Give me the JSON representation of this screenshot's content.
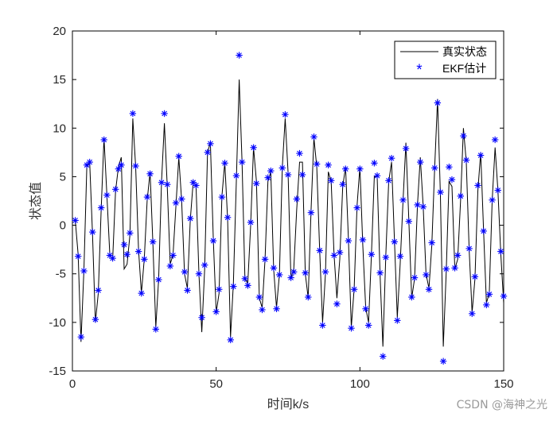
{
  "chart_data": {
    "type": "line",
    "xlabel": "时间k/s",
    "ylabel": "状态值",
    "xlim": [
      0,
      150
    ],
    "ylim": [
      -15,
      20
    ],
    "xticks": [
      0,
      50,
      100,
      150
    ],
    "yticks": [
      -15,
      -10,
      -5,
      0,
      5,
      10,
      15,
      20
    ],
    "grid": false,
    "legend_position": "top-right",
    "series": [
      {
        "name": "真实状态",
        "style": "line",
        "color": "#000000",
        "x": [
          1,
          2,
          3,
          4,
          5,
          6,
          7,
          8,
          9,
          10,
          11,
          12,
          13,
          14,
          15,
          16,
          17,
          18,
          19,
          20,
          21,
          22,
          23,
          24,
          25,
          26,
          27,
          28,
          29,
          30,
          31,
          32,
          33,
          34,
          35,
          36,
          37,
          38,
          39,
          40,
          41,
          42,
          43,
          44,
          45,
          46,
          47,
          48,
          49,
          50,
          51,
          52,
          53,
          54,
          55,
          56,
          57,
          58,
          59,
          60,
          61,
          62,
          63,
          64,
          65,
          66,
          67,
          68,
          69,
          70,
          71,
          72,
          73,
          74,
          75,
          76,
          77,
          78,
          79,
          80,
          81,
          82,
          83,
          84,
          85,
          86,
          87,
          88,
          89,
          90,
          91,
          92,
          93,
          94,
          95,
          96,
          97,
          98,
          99,
          100,
          101,
          102,
          103,
          104,
          105,
          106,
          107,
          108,
          109,
          110,
          111,
          112,
          113,
          114,
          115,
          116,
          117,
          118,
          119,
          120,
          121,
          122,
          123,
          124,
          125,
          126,
          127,
          128,
          129,
          130,
          131,
          132,
          133,
          134,
          135,
          136,
          137,
          138,
          139,
          140,
          141,
          142,
          143,
          144,
          145,
          146,
          147,
          148,
          149,
          150
        ],
        "y": [
          0.5,
          -3,
          -12,
          -4.5,
          6,
          6.5,
          -1,
          -10,
          -7,
          1.5,
          9,
          3,
          -3,
          -3.5,
          3.5,
          6,
          7,
          -4.5,
          -4,
          -1,
          11,
          6,
          -2.5,
          -7,
          -3.5,
          2.5,
          5.5,
          -2,
          -10.5,
          -5.5,
          4.5,
          10.5,
          4,
          -4,
          -3,
          2,
          7,
          2.5,
          -5,
          -6.5,
          0.5,
          4.5,
          4,
          -5,
          -11,
          -4.5,
          7.5,
          8.5,
          -1.5,
          -9,
          -7,
          3,
          6.5,
          0.5,
          -11.5,
          -6,
          4.5,
          15,
          6.5,
          -5.5,
          -6,
          0,
          8,
          4.5,
          -7.5,
          -8.5,
          -3.5,
          4.5,
          5.5,
          -4.5,
          -8.5,
          -5,
          6,
          11,
          5.5,
          -5.5,
          -4.5,
          1.5,
          6.5,
          6.5,
          -5,
          -7.5,
          1.5,
          9,
          6,
          -2.5,
          -10,
          -5,
          5.5,
          4.5,
          -3,
          -7.5,
          -3.5,
          4,
          6,
          -1.5,
          -10.5,
          -6.5,
          2,
          6,
          -2,
          -8.5,
          -10,
          -3,
          5,
          5,
          -5,
          -12.5,
          -3,
          4.5,
          6.5,
          -1.5,
          -9.5,
          -4,
          2.5,
          8.5,
          0.5,
          -7.5,
          -5.5,
          2,
          7,
          2,
          -5,
          -6.5,
          -2,
          6,
          13,
          3,
          -12.5,
          -5,
          4.5,
          4,
          -4.5,
          -3.5,
          2.5,
          10,
          6.5,
          -2.5,
          -9,
          -5.5,
          3.5,
          7.5,
          -0.5,
          -8,
          -7,
          2.5,
          8,
          3.5,
          -3,
          -8
        ]
      },
      {
        "name": "EKF估计",
        "style": "marker",
        "marker": "*",
        "color": "#0000ff",
        "x": [
          1,
          2,
          3,
          4,
          5,
          6,
          7,
          8,
          9,
          10,
          11,
          12,
          13,
          14,
          15,
          16,
          17,
          18,
          19,
          20,
          21,
          22,
          23,
          24,
          25,
          26,
          27,
          28,
          29,
          30,
          31,
          32,
          33,
          34,
          35,
          36,
          37,
          38,
          39,
          40,
          41,
          42,
          43,
          44,
          45,
          46,
          47,
          48,
          49,
          50,
          51,
          52,
          53,
          54,
          55,
          56,
          57,
          58,
          59,
          60,
          61,
          62,
          63,
          64,
          65,
          66,
          67,
          68,
          69,
          70,
          71,
          72,
          73,
          74,
          75,
          76,
          77,
          78,
          79,
          80,
          81,
          82,
          83,
          84,
          85,
          86,
          87,
          88,
          89,
          90,
          91,
          92,
          93,
          94,
          95,
          96,
          97,
          98,
          99,
          100,
          101,
          102,
          103,
          104,
          105,
          106,
          107,
          108,
          109,
          110,
          111,
          112,
          113,
          114,
          115,
          116,
          117,
          118,
          119,
          120,
          121,
          122,
          123,
          124,
          125,
          126,
          127,
          128,
          129,
          130,
          131,
          132,
          133,
          134,
          135,
          136,
          137,
          138,
          139,
          140,
          141,
          142,
          143,
          144,
          145,
          146,
          147,
          148,
          149,
          150
        ],
        "y": [
          0.5,
          -3.2,
          -11.5,
          -4.7,
          6.2,
          6.5,
          -0.7,
          -9.7,
          -6.7,
          1.8,
          8.8,
          3.1,
          -3.1,
          -3.4,
          3.7,
          5.8,
          6.2,
          -2,
          -3,
          -0.8,
          11.5,
          6.1,
          -2.7,
          -7,
          -3.5,
          2.9,
          5.3,
          -1.7,
          -10.7,
          -5.6,
          4.4,
          11.5,
          4.2,
          -4.2,
          -3.1,
          2.3,
          7.1,
          2.7,
          -4.8,
          -6.7,
          0.7,
          4.4,
          4.1,
          -5,
          -9.5,
          -4.1,
          7.5,
          8.4,
          -1.6,
          -8.9,
          -6.6,
          2.9,
          6.4,
          0.8,
          -11.8,
          -6.3,
          5.1,
          17.5,
          6.5,
          -5.5,
          -6.2,
          0.3,
          8,
          4.3,
          -7.4,
          -8.7,
          -3.5,
          4.9,
          5.6,
          -4.4,
          -8.6,
          -5.1,
          5.9,
          11.4,
          5.2,
          -5.4,
          -4.8,
          2.7,
          7.4,
          5.2,
          -4.9,
          -7.4,
          1.3,
          9.1,
          6.3,
          -2.6,
          -10.3,
          -4.8,
          6.2,
          4.6,
          -3.1,
          -8.1,
          -2.8,
          4.2,
          5.8,
          -1.6,
          -10.6,
          -6.6,
          1.8,
          5.8,
          -1.5,
          -8.6,
          -10.3,
          -3,
          6.4,
          5.1,
          -4.9,
          -13.5,
          -3.3,
          4.6,
          6.9,
          -1.7,
          -9.8,
          -3.2,
          2.6,
          7.9,
          0.4,
          -7.4,
          -5.4,
          2.1,
          6.5,
          1.9,
          -5.1,
          -6.6,
          -1.8,
          5.9,
          12.6,
          3.4,
          -14,
          -4.5,
          6,
          4.7,
          -4.4,
          -3.1,
          3,
          9.2,
          6.7,
          -2.4,
          -9.1,
          -5.3,
          4.1,
          7.2,
          -0.6,
          -8.2,
          -7.1,
          2.6,
          8.8,
          3.6,
          -2.7,
          -7.3
        ]
      }
    ]
  },
  "watermark": "CSDN @海神之光"
}
